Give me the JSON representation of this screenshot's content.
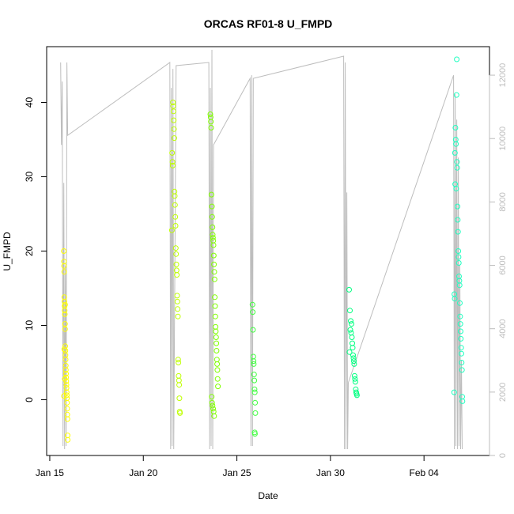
{
  "chart_data": {
    "type": "scatter",
    "title": "ORCAS RF01-8 U_FMPD",
    "xlabel": "Date",
    "ylabel": "U_FMPD",
    "x_axis": {
      "type": "date",
      "range": [
        "2016-01-14T20:00",
        "2016-02-07T12:00"
      ],
      "ticks": [
        "2016-01-15",
        "2016-01-20",
        "2016-01-25",
        "2016-01-30",
        "2016-02-04"
      ],
      "tick_labels": [
        "Jan 15",
        "Jan 20",
        "Jan 25",
        "Jan 30",
        "Feb 04"
      ]
    },
    "y_axis_left": {
      "range": [
        -7.5,
        47.5
      ],
      "ticks": [
        0,
        10,
        20,
        30,
        40
      ],
      "tick_labels": [
        "0",
        "10",
        "20",
        "30",
        "40"
      ]
    },
    "y_axis_right": {
      "range": [
        0,
        12900
      ],
      "ticks": [
        0,
        2000,
        4000,
        6000,
        8000,
        10000,
        12000
      ],
      "tick_labels": [
        "0",
        "2000",
        "4000",
        "6000",
        "8000",
        "10000",
        "12000"
      ],
      "color": "#bdbdbd"
    },
    "series": [
      {
        "color": "#ffff00",
        "points": [
          [
            "2016-01-15T18:00",
            20.0
          ],
          [
            "2016-01-15T18:10",
            18.6
          ],
          [
            "2016-01-15T18:20",
            18.0
          ],
          [
            "2016-01-15T18:30",
            17.2
          ],
          [
            "2016-01-15T18:40",
            13.8
          ],
          [
            "2016-01-15T18:50",
            13.2
          ],
          [
            "2016-01-15T19:00",
            12.6
          ],
          [
            "2016-01-15T19:10",
            12.0
          ],
          [
            "2016-01-15T19:20",
            11.5
          ],
          [
            "2016-01-15T19:30",
            10.2
          ],
          [
            "2016-01-15T19:40",
            9.5
          ],
          [
            "2016-01-15T19:50",
            7.2
          ],
          [
            "2016-01-15T20:00",
            6.6
          ],
          [
            "2016-01-15T20:10",
            6.0
          ],
          [
            "2016-01-15T20:20",
            5.4
          ],
          [
            "2016-01-15T20:30",
            4.6
          ],
          [
            "2016-01-15T20:40",
            4.0
          ],
          [
            "2016-01-15T20:50",
            3.5
          ],
          [
            "2016-01-15T21:00",
            3.0
          ],
          [
            "2016-01-15T21:10",
            2.5
          ],
          [
            "2016-01-15T21:20",
            2.0
          ],
          [
            "2016-01-15T21:30",
            1.6
          ],
          [
            "2016-01-15T21:40",
            1.0
          ],
          [
            "2016-01-15T21:50",
            0.6
          ],
          [
            "2016-01-15T22:00",
            0.2
          ],
          [
            "2016-01-15T22:10",
            -0.4
          ],
          [
            "2016-01-15T22:20",
            -1.2
          ],
          [
            "2016-01-15T22:30",
            -2.0
          ],
          [
            "2016-01-15T22:40",
            -2.6
          ],
          [
            "2016-01-15T22:50",
            -4.8
          ],
          [
            "2016-01-15T23:00",
            -5.4
          ],
          [
            "2016-01-15T18:05",
            0.5
          ],
          [
            "2016-01-15T18:35",
            6.8
          ],
          [
            "2016-01-15T19:05",
            2.8
          ],
          [
            "2016-01-15T19:35",
            12.8
          ]
        ]
      },
      {
        "color": "#bfff00",
        "points": [
          [
            "2016-01-21T14:00",
            40.0
          ],
          [
            "2016-01-21T14:20",
            39.5
          ],
          [
            "2016-01-21T14:40",
            38.8
          ],
          [
            "2016-01-21T15:00",
            37.6
          ],
          [
            "2016-01-21T15:20",
            36.4
          ],
          [
            "2016-01-21T15:40",
            35.2
          ],
          [
            "2016-01-21T13:00",
            33.2
          ],
          [
            "2016-01-21T13:20",
            32.0
          ],
          [
            "2016-01-21T13:40",
            31.5
          ],
          [
            "2016-01-21T16:00",
            28.0
          ],
          [
            "2016-01-21T16:20",
            27.4
          ],
          [
            "2016-01-21T16:40",
            26.2
          ],
          [
            "2016-01-21T17:00",
            24.6
          ],
          [
            "2016-01-21T17:20",
            23.4
          ],
          [
            "2016-01-21T12:40",
            22.8
          ],
          [
            "2016-01-21T17:40",
            20.4
          ],
          [
            "2016-01-21T18:00",
            19.6
          ],
          [
            "2016-01-21T18:20",
            18.2
          ],
          [
            "2016-01-21T18:40",
            17.4
          ],
          [
            "2016-01-21T19:00",
            16.8
          ],
          [
            "2016-01-21T19:20",
            14.0
          ],
          [
            "2016-01-21T19:40",
            13.2
          ],
          [
            "2016-01-21T20:00",
            12.2
          ],
          [
            "2016-01-21T20:20",
            11.2
          ],
          [
            "2016-01-21T20:40",
            5.4
          ],
          [
            "2016-01-21T21:00",
            5.0
          ],
          [
            "2016-01-21T21:20",
            3.2
          ],
          [
            "2016-01-21T21:40",
            2.6
          ],
          [
            "2016-01-21T22:00",
            2.0
          ],
          [
            "2016-01-21T22:20",
            0.2
          ],
          [
            "2016-01-21T22:40",
            -1.6
          ],
          [
            "2016-01-21T23:00",
            -1.8
          ]
        ]
      },
      {
        "color": "#80ff00",
        "points": [
          [
            "2016-01-23T14:00",
            38.4
          ],
          [
            "2016-01-23T14:20",
            38.0
          ],
          [
            "2016-01-23T14:40",
            37.4
          ],
          [
            "2016-01-23T15:00",
            36.6
          ],
          [
            "2016-01-23T15:20",
            27.6
          ],
          [
            "2016-01-23T16:00",
            26.0
          ],
          [
            "2016-01-23T16:20",
            24.6
          ],
          [
            "2016-01-23T16:40",
            23.2
          ],
          [
            "2016-01-23T17:00",
            22.2
          ],
          [
            "2016-01-23T17:20",
            21.8
          ],
          [
            "2016-01-23T17:40",
            21.4
          ],
          [
            "2016-01-23T18:00",
            20.8
          ],
          [
            "2016-01-23T18:20",
            19.4
          ],
          [
            "2016-01-23T18:40",
            18.2
          ],
          [
            "2016-01-23T19:00",
            17.2
          ],
          [
            "2016-01-23T19:20",
            16.2
          ],
          [
            "2016-01-23T19:40",
            13.8
          ],
          [
            "2016-01-23T20:00",
            12.6
          ],
          [
            "2016-01-23T20:20",
            11.2
          ],
          [
            "2016-01-23T20:40",
            9.8
          ],
          [
            "2016-01-23T21:00",
            9.2
          ],
          [
            "2016-01-23T21:20",
            8.4
          ],
          [
            "2016-01-23T21:40",
            7.6
          ],
          [
            "2016-01-23T22:00",
            6.6
          ],
          [
            "2016-01-23T22:20",
            5.4
          ],
          [
            "2016-01-23T22:40",
            4.8
          ],
          [
            "2016-01-23T23:00",
            4.0
          ],
          [
            "2016-01-23T23:20",
            2.8
          ],
          [
            "2016-01-23T23:40",
            1.8
          ],
          [
            "2016-01-23T15:40",
            0.4
          ],
          [
            "2016-01-23T16:10",
            -0.4
          ],
          [
            "2016-01-23T16:50",
            -0.8
          ],
          [
            "2016-01-23T17:30",
            -1.2
          ],
          [
            "2016-01-23T18:10",
            -1.6
          ],
          [
            "2016-01-23T18:50",
            -2.2
          ]
        ]
      },
      {
        "color": "#40ff40",
        "points": [
          [
            "2016-01-25T20:00",
            12.8
          ],
          [
            "2016-01-25T20:20",
            11.8
          ],
          [
            "2016-01-25T20:40",
            9.4
          ],
          [
            "2016-01-25T21:00",
            5.8
          ],
          [
            "2016-01-25T21:20",
            5.2
          ],
          [
            "2016-01-25T21:40",
            4.8
          ],
          [
            "2016-01-25T22:00",
            3.4
          ],
          [
            "2016-01-25T22:20",
            2.6
          ],
          [
            "2016-01-25T22:40",
            1.4
          ],
          [
            "2016-01-25T23:00",
            1.0
          ],
          [
            "2016-01-25T23:20",
            -0.4
          ],
          [
            "2016-01-25T23:40",
            -1.8
          ],
          [
            "2016-01-25T22:50",
            -4.4
          ],
          [
            "2016-01-25T23:10",
            -4.6
          ]
        ]
      },
      {
        "color": "#00ff80",
        "points": [
          [
            "2016-01-31T00:00",
            14.8
          ],
          [
            "2016-01-31T01:00",
            12.0
          ],
          [
            "2016-01-31T02:00",
            10.6
          ],
          [
            "2016-01-31T03:00",
            10.2
          ],
          [
            "2016-01-31T01:30",
            9.4
          ],
          [
            "2016-01-31T02:30",
            9.0
          ],
          [
            "2016-01-31T03:30",
            8.4
          ],
          [
            "2016-01-31T04:00",
            7.6
          ],
          [
            "2016-01-31T04:30",
            7.0
          ],
          [
            "2016-01-31T00:30",
            6.4
          ],
          [
            "2016-01-31T05:00",
            6.0
          ],
          [
            "2016-01-31T05:30",
            5.6
          ],
          [
            "2016-01-31T06:00",
            5.2
          ],
          [
            "2016-01-31T06:30",
            4.8
          ],
          [
            "2016-01-31T07:00",
            3.2
          ],
          [
            "2016-01-31T07:30",
            2.8
          ],
          [
            "2016-01-31T08:00",
            2.4
          ],
          [
            "2016-01-31T08:30",
            1.4
          ],
          [
            "2016-01-31T09:00",
            1.0
          ],
          [
            "2016-01-31T09:30",
            0.8
          ],
          [
            "2016-01-31T10:00",
            0.6
          ]
        ]
      },
      {
        "color": "#20ffc0",
        "points": [
          [
            "2016-02-05T18:00",
            45.8
          ],
          [
            "2016-02-05T17:40",
            41.0
          ],
          [
            "2016-02-05T16:20",
            36.6
          ],
          [
            "2016-02-05T16:40",
            35.0
          ],
          [
            "2016-02-05T17:00",
            34.4
          ],
          [
            "2016-02-05T15:40",
            33.2
          ],
          [
            "2016-02-05T18:20",
            32.0
          ],
          [
            "2016-02-05T18:40",
            31.2
          ],
          [
            "2016-02-05T16:00",
            29.0
          ],
          [
            "2016-02-05T17:20",
            28.4
          ],
          [
            "2016-02-05T19:00",
            26.0
          ],
          [
            "2016-02-05T19:20",
            24.2
          ],
          [
            "2016-02-05T19:40",
            22.6
          ],
          [
            "2016-02-05T20:00",
            20.0
          ],
          [
            "2016-02-05T20:20",
            19.2
          ],
          [
            "2016-02-05T20:40",
            18.4
          ],
          [
            "2016-02-05T21:00",
            16.6
          ],
          [
            "2016-02-05T21:20",
            16.0
          ],
          [
            "2016-02-05T21:40",
            15.4
          ],
          [
            "2016-02-05T15:00",
            14.2
          ],
          [
            "2016-02-05T15:20",
            13.6
          ],
          [
            "2016-02-05T22:00",
            13.0
          ],
          [
            "2016-02-05T22:20",
            11.2
          ],
          [
            "2016-02-05T22:40",
            10.2
          ],
          [
            "2016-02-05T23:00",
            9.2
          ],
          [
            "2016-02-05T23:20",
            8.2
          ],
          [
            "2016-02-05T23:40",
            7.0
          ],
          [
            "2016-02-06T00:00",
            6.2
          ],
          [
            "2016-02-06T00:20",
            5.0
          ],
          [
            "2016-02-06T00:40",
            4.0
          ],
          [
            "2016-02-05T14:40",
            1.0
          ],
          [
            "2016-02-06T01:00",
            0.4
          ],
          [
            "2016-02-06T01:20",
            -0.2
          ]
        ]
      }
    ],
    "secondary_line": {
      "color": "#bdbdbd",
      "axis": "right",
      "points": [
        [
          "2016-01-15T14:00",
          12400
        ],
        [
          "2016-01-15T15:00",
          9800
        ],
        [
          "2016-01-15T16:00",
          11800
        ],
        [
          "2016-01-15T17:00",
          300
        ],
        [
          "2016-01-15T18:00",
          8600
        ],
        [
          "2016-01-15T19:00",
          200
        ],
        [
          "2016-01-15T20:00",
          6000
        ],
        [
          "2016-01-15T21:00",
          300
        ],
        [
          "2016-01-15T22:00",
          12400
        ],
        [
          "2016-01-15T23:00",
          10100
        ],
        [
          "2016-01-21T10:00",
          12400
        ],
        [
          "2016-01-21T11:00",
          200
        ],
        [
          "2016-01-21T12:00",
          11600
        ],
        [
          "2016-01-21T13:00",
          300
        ],
        [
          "2016-01-21T14:00",
          12200
        ],
        [
          "2016-01-21T15:00",
          200
        ],
        [
          "2016-01-21T18:00",
          12300
        ],
        [
          "2016-01-23T12:00",
          12400
        ],
        [
          "2016-01-23T13:00",
          200
        ],
        [
          "2016-01-23T14:00",
          11600
        ],
        [
          "2016-01-23T15:00",
          300
        ],
        [
          "2016-01-23T16:00",
          12800
        ],
        [
          "2016-01-23T17:00",
          200
        ],
        [
          "2016-01-23T18:00",
          9800
        ],
        [
          "2016-01-25T17:00",
          11900
        ],
        [
          "2016-01-25T18:00",
          300
        ],
        [
          "2016-01-25T19:00",
          12000
        ],
        [
          "2016-01-25T20:00",
          300
        ],
        [
          "2016-01-25T21:00",
          11900
        ],
        [
          "2016-01-30T17:00",
          12600
        ],
        [
          "2016-01-30T18:00",
          200
        ],
        [
          "2016-01-30T19:00",
          12400
        ],
        [
          "2016-01-30T20:00",
          200
        ],
        [
          "2016-01-30T21:00",
          8300
        ],
        [
          "2016-01-30T22:00",
          200
        ],
        [
          "2016-01-30T23:00",
          2300
        ],
        [
          "2016-02-05T14:00",
          12000
        ],
        [
          "2016-02-05T15:00",
          200
        ],
        [
          "2016-02-05T16:00",
          11400
        ],
        [
          "2016-02-05T17:00",
          300
        ],
        [
          "2016-02-05T18:00",
          10600
        ],
        [
          "2016-02-05T19:00",
          200
        ],
        [
          "2016-02-05T20:00",
          9400
        ],
        [
          "2016-02-05T21:00",
          300
        ],
        [
          "2016-02-05T22:00",
          6000
        ],
        [
          "2016-02-05T23:00",
          200
        ],
        [
          "2016-02-06T00:00",
          3000
        ],
        [
          "2016-02-06T01:00",
          200
        ]
      ]
    },
    "grid": false,
    "legend": "none"
  }
}
